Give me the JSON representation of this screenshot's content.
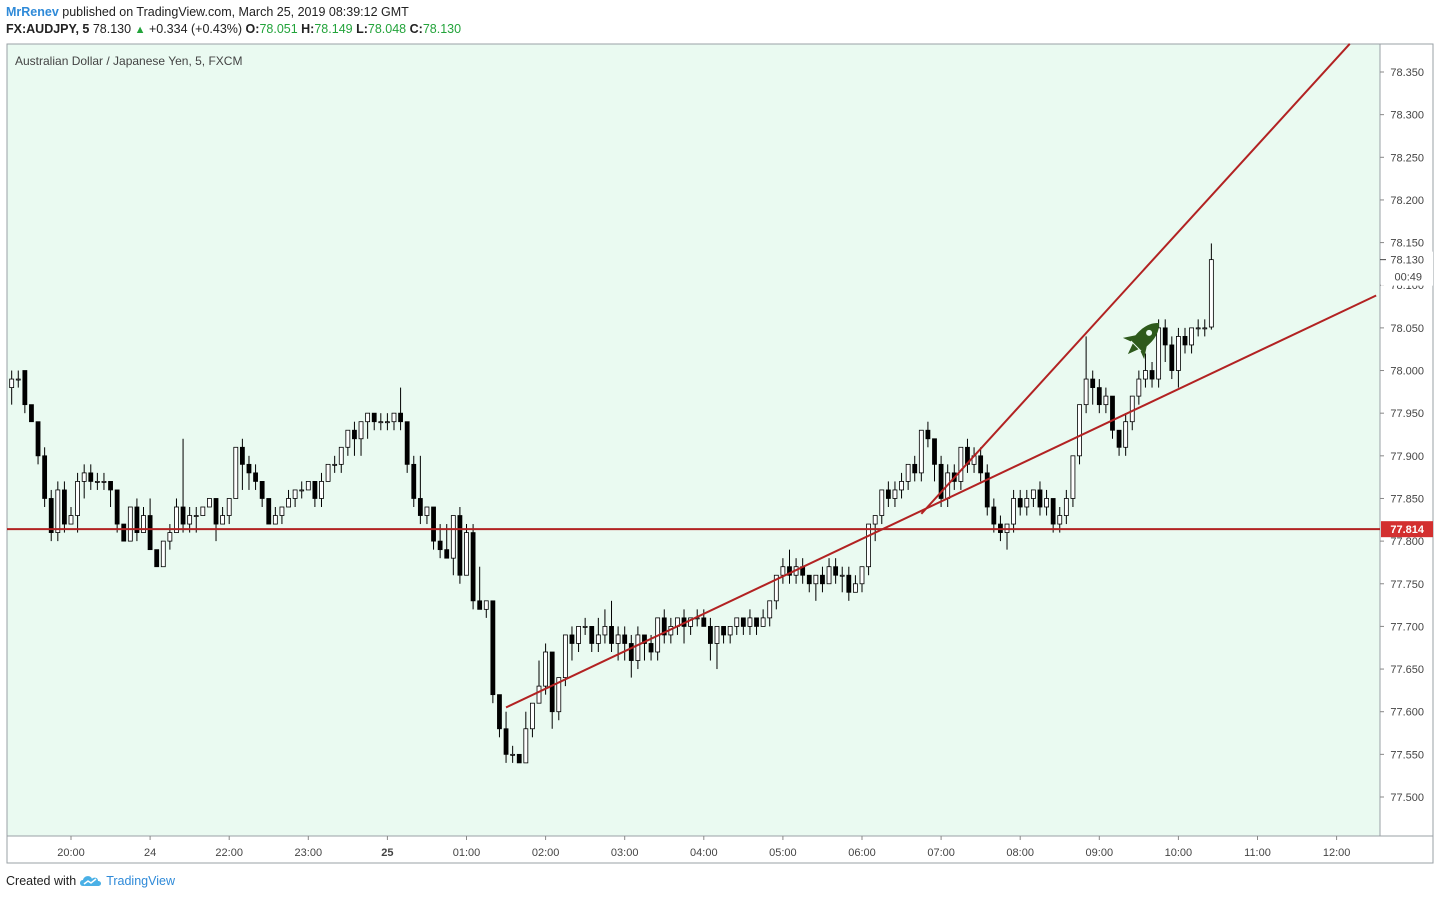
{
  "header": {
    "author": "MrRenev",
    "published_text": "published on TradingView.com, March 25, 2019 08:39:12 GMT",
    "symbol": "FX:AUDJPY, 5",
    "last": "78.130",
    "change": "+0.334 (+0.43%)",
    "open_label": "O:",
    "open": "78.051",
    "high_label": "H:",
    "high": "78.149",
    "low_label": "L:",
    "low": "78.048",
    "close_label": "C:",
    "close": "78.130"
  },
  "footer": {
    "text": "Created with",
    "brand": "TradingView"
  },
  "colors": {
    "background": "#eafaf1",
    "line": "#b22222",
    "price_label": "#d32f2f",
    "rocket": "#2e5a1c",
    "up": "#ffffff",
    "down": "#000000"
  },
  "icons": {
    "brand_logo": "tradingview-cloud-icon",
    "annotation": "rocket-icon"
  },
  "chart_data": {
    "type": "candlestick",
    "title": "Australian Dollar / Japanese Yen, 5, FXCM",
    "ylim": [
      77.45,
      78.39
    ],
    "y_ticks": [
      "78.350",
      "78.300",
      "78.250",
      "78.200",
      "78.150",
      "78.100",
      "78.050",
      "78.000",
      "77.950",
      "77.900",
      "77.850",
      "77.800",
      "77.750",
      "77.700",
      "77.650",
      "77.600",
      "77.550",
      "77.500"
    ],
    "x_ticks": [
      {
        "label": "20:00",
        "t": "2019-03-24 20:00",
        "bold": false
      },
      {
        "label": "24",
        "t": "2019-03-24 21:00",
        "bold": false
      },
      {
        "label": "22:00",
        "t": "2019-03-24 22:00",
        "bold": false
      },
      {
        "label": "23:00",
        "t": "2019-03-24 23:00",
        "bold": false
      },
      {
        "label": "25",
        "t": "2019-03-25 00:00",
        "bold": true
      },
      {
        "label": "01:00",
        "t": "2019-03-25 01:00",
        "bold": false
      },
      {
        "label": "02:00",
        "t": "2019-03-25 02:00",
        "bold": false
      },
      {
        "label": "03:00",
        "t": "2019-03-25 03:00",
        "bold": false
      },
      {
        "label": "04:00",
        "t": "2019-03-25 04:00",
        "bold": false
      },
      {
        "label": "05:00",
        "t": "2019-03-25 05:00",
        "bold": false
      },
      {
        "label": "06:00",
        "t": "2019-03-25 06:00",
        "bold": false
      },
      {
        "label": "07:00",
        "t": "2019-03-25 07:00",
        "bold": false
      },
      {
        "label": "08:00",
        "t": "2019-03-25 08:00",
        "bold": false
      },
      {
        "label": "09:00",
        "t": "2019-03-25 09:00",
        "bold": false
      },
      {
        "label": "10:00",
        "t": "2019-03-25 10:00",
        "bold": false
      },
      {
        "label": "11:00",
        "t": "2019-03-25 11:00",
        "bold": false
      },
      {
        "label": "12:00",
        "t": "2019-03-25 12:00",
        "bold": false
      }
    ],
    "first_bar_time": "2019-03-24 19:15",
    "bar_minutes": 5,
    "candles": [
      [
        77.98,
        77.99,
        78.0,
        77.96
      ],
      [
        77.99,
        77.99,
        78.0,
        77.98
      ],
      [
        78.0,
        77.96,
        78.0,
        77.95
      ],
      [
        77.96,
        77.94,
        77.96,
        77.94
      ],
      [
        77.94,
        77.9,
        77.94,
        77.89
      ],
      [
        77.9,
        77.85,
        77.91,
        77.84
      ],
      [
        77.85,
        77.81,
        77.86,
        77.8
      ],
      [
        77.81,
        77.86,
        77.87,
        77.8
      ],
      [
        77.86,
        77.82,
        77.87,
        77.81
      ],
      [
        77.82,
        77.83,
        77.84,
        77.82
      ],
      [
        77.83,
        77.87,
        77.88,
        77.81
      ],
      [
        77.87,
        77.88,
        77.89,
        77.85
      ],
      [
        77.88,
        77.87,
        77.89,
        77.86
      ],
      [
        77.87,
        77.87,
        77.88,
        77.86
      ],
      [
        77.87,
        77.87,
        77.88,
        77.86
      ],
      [
        77.87,
        77.86,
        77.87,
        77.84
      ],
      [
        77.86,
        77.82,
        77.86,
        77.81
      ],
      [
        77.82,
        77.8,
        77.82,
        77.8
      ],
      [
        77.8,
        77.84,
        77.84,
        77.8
      ],
      [
        77.84,
        77.81,
        77.85,
        77.8
      ],
      [
        77.81,
        77.83,
        77.84,
        77.81
      ],
      [
        77.83,
        77.79,
        77.85,
        77.79
      ],
      [
        77.79,
        77.77,
        77.79,
        77.77
      ],
      [
        77.77,
        77.8,
        77.8,
        77.77
      ],
      [
        77.8,
        77.81,
        77.82,
        77.79
      ],
      [
        77.81,
        77.84,
        77.85,
        77.81
      ],
      [
        77.84,
        77.82,
        77.92,
        77.81
      ],
      [
        77.82,
        77.83,
        77.84,
        77.81
      ],
      [
        77.83,
        77.83,
        77.84,
        77.81
      ],
      [
        77.83,
        77.84,
        77.84,
        77.83
      ],
      [
        77.84,
        77.85,
        77.85,
        77.84
      ],
      [
        77.85,
        77.82,
        77.85,
        77.8
      ],
      [
        77.82,
        77.83,
        77.84,
        77.82
      ],
      [
        77.83,
        77.85,
        77.85,
        77.82
      ],
      [
        77.85,
        77.91,
        77.91,
        77.85
      ],
      [
        77.91,
        77.89,
        77.92,
        77.86
      ],
      [
        77.89,
        77.88,
        77.9,
        77.86
      ],
      [
        77.88,
        77.87,
        77.89,
        77.86
      ],
      [
        77.87,
        77.85,
        77.87,
        77.84
      ],
      [
        77.85,
        77.82,
        77.85,
        77.82
      ],
      [
        77.82,
        77.83,
        77.84,
        77.82
      ],
      [
        77.83,
        77.84,
        77.84,
        77.82
      ],
      [
        77.84,
        77.85,
        77.86,
        77.84
      ],
      [
        77.85,
        77.86,
        77.86,
        77.84
      ],
      [
        77.86,
        77.86,
        77.87,
        77.85
      ],
      [
        77.86,
        77.87,
        77.87,
        77.86
      ],
      [
        77.87,
        77.85,
        77.87,
        77.84
      ],
      [
        77.85,
        77.87,
        77.88,
        77.84
      ],
      [
        77.87,
        77.89,
        77.89,
        77.87
      ],
      [
        77.89,
        77.89,
        77.9,
        77.88
      ],
      [
        77.89,
        77.91,
        77.91,
        77.88
      ],
      [
        77.91,
        77.93,
        77.93,
        77.9
      ],
      [
        77.93,
        77.92,
        77.94,
        77.9
      ],
      [
        77.92,
        77.94,
        77.94,
        77.9
      ],
      [
        77.94,
        77.95,
        77.95,
        77.92
      ],
      [
        77.95,
        77.94,
        77.95,
        77.93
      ],
      [
        77.94,
        77.94,
        77.95,
        77.93
      ],
      [
        77.94,
        77.94,
        77.95,
        77.93
      ],
      [
        77.94,
        77.95,
        77.95,
        77.93
      ],
      [
        77.95,
        77.94,
        77.98,
        77.93
      ],
      [
        77.94,
        77.89,
        77.94,
        77.88
      ],
      [
        77.89,
        77.85,
        77.9,
        77.84
      ],
      [
        77.85,
        77.83,
        77.9,
        77.82
      ],
      [
        77.83,
        77.84,
        77.84,
        77.82
      ],
      [
        77.84,
        77.8,
        77.84,
        77.79
      ],
      [
        77.8,
        77.79,
        77.82,
        77.78
      ],
      [
        77.79,
        77.78,
        77.82,
        77.78
      ],
      [
        77.78,
        77.83,
        77.83,
        77.76
      ],
      [
        77.83,
        77.76,
        77.84,
        77.75
      ],
      [
        77.76,
        77.81,
        77.82,
        77.76
      ],
      [
        77.81,
        77.73,
        77.82,
        77.72
      ],
      [
        77.73,
        77.72,
        77.77,
        77.72
      ],
      [
        77.72,
        77.73,
        77.73,
        77.71
      ],
      [
        77.73,
        77.62,
        77.73,
        77.61
      ],
      [
        77.62,
        77.58,
        77.62,
        77.57
      ],
      [
        77.58,
        77.55,
        77.6,
        77.54
      ],
      [
        77.55,
        77.55,
        77.56,
        77.54
      ],
      [
        77.55,
        77.54,
        77.55,
        77.54
      ],
      [
        77.54,
        77.58,
        77.6,
        77.54
      ],
      [
        77.58,
        77.61,
        77.61,
        77.57
      ],
      [
        77.61,
        77.63,
        77.66,
        77.61
      ],
      [
        77.63,
        77.67,
        77.68,
        77.62
      ],
      [
        77.67,
        77.6,
        77.67,
        77.58
      ],
      [
        77.6,
        77.64,
        77.64,
        77.59
      ],
      [
        77.64,
        77.69,
        77.69,
        77.63
      ],
      [
        77.69,
        77.68,
        77.7,
        77.66
      ],
      [
        77.68,
        77.7,
        77.7,
        77.67
      ],
      [
        77.7,
        77.7,
        77.71,
        77.69
      ],
      [
        77.7,
        77.68,
        77.7,
        77.67
      ],
      [
        77.68,
        77.69,
        77.71,
        77.67
      ],
      [
        77.69,
        77.7,
        77.72,
        77.68
      ],
      [
        77.7,
        77.68,
        77.73,
        77.67
      ],
      [
        77.68,
        77.69,
        77.7,
        77.66
      ],
      [
        77.69,
        77.68,
        77.7,
        77.66
      ],
      [
        77.68,
        77.66,
        77.69,
        77.64
      ],
      [
        77.66,
        77.69,
        77.7,
        77.65
      ],
      [
        77.69,
        77.68,
        77.69,
        77.66
      ],
      [
        77.68,
        77.67,
        77.69,
        77.66
      ],
      [
        77.67,
        77.71,
        77.71,
        77.66
      ],
      [
        77.71,
        77.69,
        77.72,
        77.68
      ],
      [
        77.69,
        77.7,
        77.71,
        77.68
      ],
      [
        77.7,
        77.71,
        77.71,
        77.69
      ],
      [
        77.71,
        77.7,
        77.72,
        77.68
      ],
      [
        77.7,
        77.71,
        77.71,
        77.69
      ],
      [
        77.71,
        77.71,
        77.72,
        77.7
      ],
      [
        77.71,
        77.7,
        77.72,
        77.7
      ],
      [
        77.7,
        77.68,
        77.71,
        77.66
      ],
      [
        77.68,
        77.7,
        77.7,
        77.65
      ],
      [
        77.7,
        77.69,
        77.7,
        77.68
      ],
      [
        77.69,
        77.7,
        77.7,
        77.68
      ],
      [
        77.7,
        77.71,
        77.71,
        77.69
      ],
      [
        77.71,
        77.7,
        77.71,
        77.69
      ],
      [
        77.7,
        77.71,
        77.72,
        77.69
      ],
      [
        77.71,
        77.7,
        77.71,
        77.69
      ],
      [
        77.7,
        77.71,
        77.72,
        77.7
      ],
      [
        77.71,
        77.73,
        77.73,
        77.7
      ],
      [
        77.73,
        77.76,
        77.76,
        77.72
      ],
      [
        77.76,
        77.77,
        77.78,
        77.75
      ],
      [
        77.77,
        77.76,
        77.79,
        77.75
      ],
      [
        77.76,
        77.77,
        77.78,
        77.75
      ],
      [
        77.77,
        77.76,
        77.78,
        77.75
      ],
      [
        77.76,
        77.75,
        77.76,
        77.74
      ],
      [
        77.75,
        77.76,
        77.76,
        77.73
      ],
      [
        77.76,
        77.75,
        77.77,
        77.74
      ],
      [
        77.75,
        77.77,
        77.78,
        77.75
      ],
      [
        77.77,
        77.76,
        77.78,
        77.75
      ],
      [
        77.76,
        77.76,
        77.77,
        77.74
      ],
      [
        77.76,
        77.74,
        77.77,
        77.73
      ],
      [
        77.74,
        77.75,
        77.76,
        77.74
      ],
      [
        77.75,
        77.77,
        77.77,
        77.74
      ],
      [
        77.77,
        77.82,
        77.82,
        77.76
      ],
      [
        77.82,
        77.83,
        77.83,
        77.8
      ],
      [
        77.83,
        77.86,
        77.86,
        77.82
      ],
      [
        77.86,
        77.85,
        77.87,
        77.84
      ],
      [
        77.85,
        77.86,
        77.87,
        77.84
      ],
      [
        77.86,
        77.87,
        77.88,
        77.85
      ],
      [
        77.87,
        77.89,
        77.89,
        77.86
      ],
      [
        77.89,
        77.88,
        77.9,
        77.87
      ],
      [
        77.88,
        77.93,
        77.93,
        77.87
      ],
      [
        77.93,
        77.92,
        77.94,
        77.91
      ],
      [
        77.92,
        77.89,
        77.92,
        77.87
      ],
      [
        77.89,
        77.85,
        77.9,
        77.84
      ],
      [
        77.85,
        77.88,
        77.89,
        77.84
      ],
      [
        77.88,
        77.87,
        77.89,
        77.86
      ],
      [
        77.87,
        77.91,
        77.91,
        77.86
      ],
      [
        77.91,
        77.89,
        77.92,
        77.88
      ],
      [
        77.89,
        77.9,
        77.91,
        77.88
      ],
      [
        77.9,
        77.88,
        77.91,
        77.87
      ],
      [
        77.88,
        77.84,
        77.89,
        77.83
      ],
      [
        77.84,
        77.82,
        77.85,
        77.81
      ],
      [
        77.82,
        77.81,
        77.83,
        77.8
      ],
      [
        77.81,
        77.82,
        77.82,
        77.79
      ],
      [
        77.82,
        77.85,
        77.86,
        77.81
      ],
      [
        77.85,
        77.84,
        77.86,
        77.83
      ],
      [
        77.84,
        77.85,
        77.86,
        77.83
      ],
      [
        77.85,
        77.86,
        77.86,
        77.84
      ],
      [
        77.86,
        77.84,
        77.87,
        77.83
      ],
      [
        77.84,
        77.85,
        77.86,
        77.83
      ],
      [
        77.85,
        77.82,
        77.85,
        77.81
      ],
      [
        77.82,
        77.83,
        77.84,
        77.81
      ],
      [
        77.83,
        77.85,
        77.86,
        77.82
      ],
      [
        77.85,
        77.9,
        77.9,
        77.84
      ],
      [
        77.9,
        77.96,
        77.96,
        77.89
      ],
      [
        77.96,
        77.99,
        78.04,
        77.95
      ],
      [
        77.99,
        77.98,
        78.0,
        77.96
      ],
      [
        77.98,
        77.96,
        77.99,
        77.95
      ],
      [
        77.96,
        77.97,
        77.98,
        77.95
      ],
      [
        77.97,
        77.93,
        77.97,
        77.92
      ],
      [
        77.93,
        77.91,
        77.93,
        77.9
      ],
      [
        77.91,
        77.94,
        77.95,
        77.9
      ],
      [
        77.94,
        77.97,
        77.97,
        77.93
      ],
      [
        77.97,
        77.99,
        78.0,
        77.96
      ],
      [
        77.99,
        78.0,
        78.02,
        77.98
      ],
      [
        78.0,
        77.99,
        78.01,
        77.98
      ],
      [
        77.99,
        78.05,
        78.06,
        77.98
      ],
      [
        78.05,
        78.03,
        78.06,
        78.01
      ],
      [
        78.03,
        78.0,
        78.04,
        77.99
      ],
      [
        78.0,
        78.04,
        78.05,
        77.98
      ],
      [
        78.04,
        78.03,
        78.05,
        78.02
      ],
      [
        78.03,
        78.05,
        78.05,
        78.02
      ],
      [
        78.05,
        78.05,
        78.06,
        78.04
      ],
      [
        78.05,
        78.05,
        78.06,
        78.04
      ],
      [
        78.051,
        78.13,
        78.149,
        78.048
      ]
    ],
    "horizontal_line": {
      "price": 77.814,
      "label": "77.814"
    },
    "trendlines": [
      {
        "t1": "2019-03-25 01:30",
        "p1": 77.605,
        "t2": "2019-03-25 12:30",
        "p2": 78.088
      },
      {
        "t1": "2019-03-25 06:45",
        "p1": 77.832,
        "t2": "2019-03-25 12:10",
        "p2": 78.383
      }
    ],
    "last_price_label": "78.130",
    "countdown": "00:49"
  }
}
